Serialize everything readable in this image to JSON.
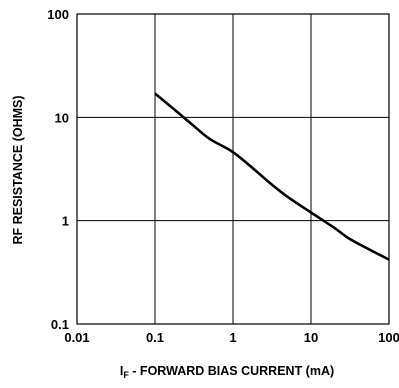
{
  "chart_data": {
    "type": "line",
    "title": "",
    "xlabel_main": "I",
    "xlabel_sub": "F",
    "xlabel_rest": " -  FORWARD BIAS CURRENT (mA)",
    "ylabel": "RF RESISTANCE (OHMS)",
    "x_scale": "log",
    "y_scale": "log",
    "xlim": [
      0.01,
      100
    ],
    "ylim": [
      0.1,
      100
    ],
    "grid": true,
    "x_ticks": [
      0.01,
      0.1,
      1,
      10,
      100
    ],
    "x_tick_labels": [
      "0.01",
      "0.1",
      "1",
      "10",
      "100"
    ],
    "y_ticks": [
      0.1,
      1,
      10,
      100
    ],
    "y_tick_labels": [
      "0.1",
      "1",
      "10",
      "100"
    ],
    "series": [
      {
        "x": [
          0.1,
          0.2,
          0.3,
          0.5,
          1,
          2,
          3,
          5,
          10,
          20,
          30,
          50,
          100
        ],
        "y": [
          17,
          11,
          8.5,
          6.2,
          4.6,
          3.0,
          2.3,
          1.7,
          1.2,
          0.85,
          0.68,
          0.55,
          0.42
        ]
      }
    ],
    "colors": {
      "line": "#000000",
      "grid": "#000000",
      "background": "#ffffff"
    }
  }
}
